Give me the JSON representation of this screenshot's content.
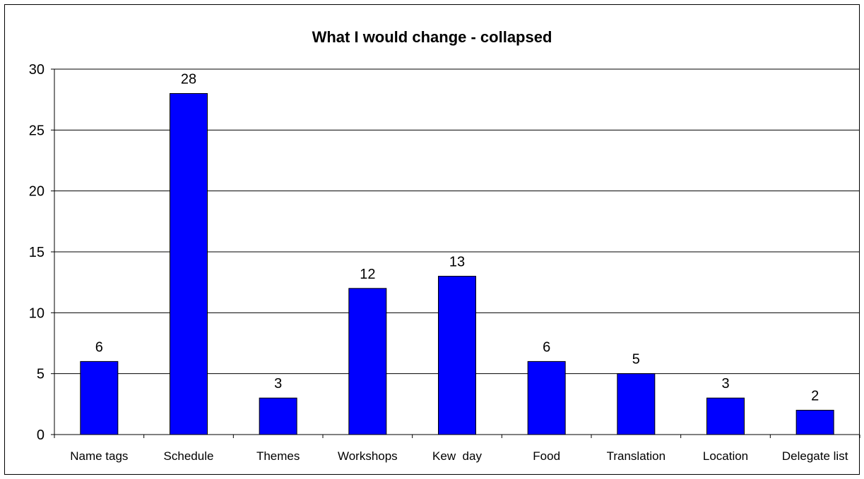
{
  "chart_data": {
    "type": "bar",
    "title": "What I would change - collapsed",
    "xlabel": "",
    "ylabel": "",
    "categories": [
      "Name tags",
      "Schedule",
      "Themes",
      "Workshops",
      "Kew  day",
      "Food",
      "Translation",
      "Location",
      "Delegate list"
    ],
    "values": [
      6,
      28,
      3,
      12,
      13,
      6,
      5,
      3,
      2
    ],
    "ylim": [
      0,
      30
    ],
    "yticks": [
      "0",
      "5",
      "10",
      "15",
      "20",
      "25",
      "30"
    ],
    "data_labels": [
      "6",
      "28",
      "3",
      "12",
      "13",
      "6",
      "5",
      "3",
      "2"
    ],
    "grid": true,
    "legend": "none",
    "bar_color": "#0000FF"
  }
}
